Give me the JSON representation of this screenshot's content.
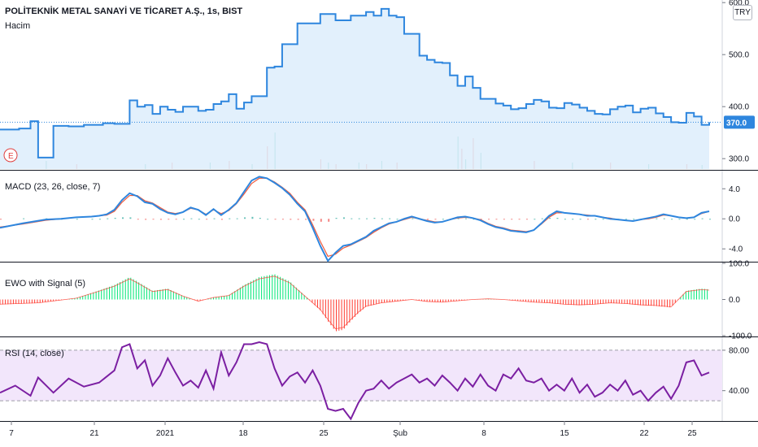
{
  "header": {
    "symbol_title": "POLİTEKNİK METAL SANAYİ VE TİCARET A.Ş., 1s, BIST",
    "volume_label": "Hacim",
    "currency_button": "TRY",
    "event_marker": "E"
  },
  "colors": {
    "price_line": "#2e86de",
    "price_fill": "#d6e9fb",
    "macd_signal": "#f05a3c",
    "hist_up": "#26a69a",
    "hist_down": "#ef5350",
    "ewo_up": "#00e676",
    "ewo_down": "#ff3b30",
    "rsi_line": "#7b1fa2",
    "rsi_band": "#f2e6fb",
    "last_price_badge": "#2e86de"
  },
  "chart_data": [
    {
      "panel": "price",
      "type": "area",
      "title": "POLİTEKNİK METAL SANAYİ VE TİCARET A.Ş., 1s, BIST",
      "ylim": [
        280,
        605
      ],
      "y_ticks": [
        "300.0",
        "400.0",
        "500.0",
        "600.0"
      ],
      "last_value": "370.0",
      "x": [
        0,
        5,
        8,
        10,
        14,
        18,
        22,
        27,
        30,
        33,
        34,
        36,
        38,
        40,
        42,
        44,
        46,
        48,
        50,
        52,
        54,
        56,
        58,
        60,
        62,
        64,
        66,
        68,
        70,
        72,
        74,
        76,
        78,
        80,
        84,
        88,
        92,
        96,
        98,
        100,
        102,
        104,
        106,
        108,
        110,
        112,
        114,
        116,
        118,
        120,
        122,
        124,
        126,
        128,
        130,
        132,
        134,
        136,
        138,
        140,
        142,
        144,
        146,
        148,
        150,
        152,
        154,
        156,
        158,
        160,
        162,
        164,
        166,
        168,
        170,
        172,
        174,
        176,
        178,
        180,
        182,
        184,
        186
      ],
      "values": [
        356,
        358,
        372,
        302,
        363,
        362,
        365,
        368,
        367,
        367,
        412,
        400,
        403,
        386,
        400,
        394,
        390,
        400,
        400,
        392,
        394,
        405,
        410,
        424,
        396,
        408,
        420,
        420,
        475,
        477,
        520,
        520,
        560,
        560,
        578,
        566,
        575,
        582,
        575,
        588,
        575,
        572,
        540,
        540,
        498,
        490,
        485,
        484,
        460,
        440,
        458,
        436,
        415,
        415,
        406,
        402,
        395,
        397,
        405,
        413,
        410,
        398,
        397,
        407,
        404,
        398,
        392,
        386,
        385,
        395,
        400,
        402,
        389,
        396,
        398,
        387,
        380,
        370,
        369,
        388,
        381,
        365,
        370
      ],
      "note_x": "x is in trading days index; bottom axis labels give dates"
    },
    {
      "panel": "volume",
      "type": "bar",
      "title": "Hacim",
      "hidden_values": true
    },
    {
      "panel": "macd",
      "type": "line",
      "title": "MACD (23, 26, close, 7)",
      "ylim": [
        -5.6,
        6.3
      ],
      "y_ticks": [
        "4.0",
        "0.0",
        "-4.0"
      ],
      "x": [
        0,
        6,
        12,
        16,
        20,
        24,
        26,
        28,
        30,
        32,
        34,
        36,
        38,
        40,
        42,
        44,
        46,
        48,
        50,
        52,
        54,
        56,
        58,
        60,
        62,
        64,
        66,
        68,
        70,
        72,
        74,
        76,
        78,
        80,
        82,
        84,
        86,
        88,
        90,
        92,
        94,
        96,
        98,
        100,
        102,
        104,
        106,
        108,
        110,
        112,
        114,
        116,
        118,
        120,
        122,
        124,
        126,
        128,
        130,
        132,
        134,
        136,
        138,
        140,
        142,
        144,
        146,
        148,
        150,
        152,
        154,
        156,
        158,
        160,
        162,
        164,
        166,
        168,
        170,
        172,
        174,
        176,
        178,
        180,
        182,
        184,
        186
      ],
      "series": [
        {
          "name": "MACD",
          "values": [
            -1.2,
            -0.6,
            -0.1,
            0.0,
            0.2,
            0.3,
            0.4,
            0.6,
            1.2,
            2.5,
            3.4,
            3.0,
            2.2,
            2.0,
            1.3,
            0.8,
            0.6,
            0.9,
            1.5,
            1.2,
            0.5,
            1.3,
            0.5,
            1.2,
            2.1,
            3.6,
            5.1,
            5.6,
            5.4,
            4.8,
            4.1,
            3.2,
            2.0,
            1.0,
            -1.2,
            -3.6,
            -5.6,
            -4.5,
            -3.6,
            -3.4,
            -2.9,
            -2.4,
            -1.6,
            -1.1,
            -0.6,
            -0.4,
            0.0,
            0.3,
            0.0,
            -0.3,
            -0.5,
            -0.4,
            -0.1,
            0.2,
            0.3,
            0.1,
            -0.2,
            -0.7,
            -1.1,
            -1.3,
            -1.6,
            -1.7,
            -1.8,
            -1.5,
            -0.6,
            0.4,
            1.0,
            0.8,
            0.7,
            0.6,
            0.4,
            0.4,
            0.2,
            0.0,
            -0.1,
            -0.2,
            -0.3,
            -0.1,
            0.1,
            0.3,
            0.6,
            0.4,
            0.2,
            0.1,
            0.2,
            0.8,
            1.0
          ]
        },
        {
          "name": "Signal",
          "values": [
            -1.1,
            -0.7,
            -0.2,
            0.0,
            0.2,
            0.3,
            0.4,
            0.5,
            1.0,
            2.2,
            3.1,
            3.1,
            2.4,
            2.1,
            1.5,
            0.9,
            0.7,
            0.9,
            1.4,
            1.2,
            0.6,
            1.2,
            0.7,
            1.1,
            2.0,
            3.3,
            4.7,
            5.4,
            5.4,
            4.9,
            4.2,
            3.4,
            2.2,
            1.2,
            -0.8,
            -3.0,
            -5.0,
            -4.7,
            -3.9,
            -3.5,
            -3.0,
            -2.5,
            -1.8,
            -1.2,
            -0.7,
            -0.4,
            -0.1,
            0.2,
            0.0,
            -0.2,
            -0.4,
            -0.4,
            -0.1,
            0.1,
            0.2,
            0.1,
            -0.1,
            -0.6,
            -1.0,
            -1.2,
            -1.5,
            -1.6,
            -1.7,
            -1.5,
            -0.7,
            0.2,
            0.8,
            0.8,
            0.7,
            0.6,
            0.5,
            0.4,
            0.2,
            0.1,
            -0.1,
            -0.2,
            -0.3,
            -0.1,
            0.0,
            0.2,
            0.5,
            0.4,
            0.2,
            0.1,
            0.2,
            0.7,
            1.0
          ]
        }
      ]
    },
    {
      "panel": "ewo",
      "type": "bar",
      "title": "EWO with Signal (5)",
      "ylim": [
        -100,
        100
      ],
      "y_ticks": [
        "100.0",
        "0.0",
        "-100.0"
      ],
      "x": [
        0,
        10,
        20,
        26,
        30,
        34,
        36,
        40,
        44,
        48,
        52,
        56,
        60,
        64,
        68,
        72,
        76,
        80,
        84,
        86,
        88,
        90,
        92,
        94,
        96,
        100,
        104,
        108,
        112,
        116,
        120,
        124,
        128,
        132,
        136,
        140,
        144,
        148,
        152,
        156,
        160,
        164,
        168,
        172,
        176,
        180,
        184,
        186
      ],
      "values": [
        -14,
        -10,
        4,
        25,
        40,
        62,
        50,
        24,
        30,
        10,
        -5,
        6,
        12,
        40,
        62,
        70,
        50,
        10,
        -30,
        -60,
        -88,
        -84,
        -60,
        -38,
        -20,
        -10,
        -5,
        0,
        -6,
        -8,
        -4,
        0,
        2,
        0,
        -4,
        -8,
        -10,
        -14,
        -16,
        -14,
        -10,
        -12,
        -16,
        -18,
        -22,
        24,
        30,
        28
      ]
    },
    {
      "panel": "rsi",
      "type": "line",
      "title": "RSI (14, close)",
      "ylim": [
        10,
        92
      ],
      "y_ticks": [
        "80.00",
        "40.00"
      ],
      "band": [
        30,
        80
      ],
      "x": [
        0,
        4,
        8,
        10,
        14,
        18,
        22,
        26,
        30,
        32,
        34,
        36,
        38,
        40,
        42,
        44,
        46,
        48,
        50,
        52,
        54,
        56,
        58,
        60,
        62,
        64,
        66,
        68,
        70,
        72,
        74,
        76,
        78,
        80,
        82,
        84,
        86,
        88,
        90,
        92,
        94,
        96,
        98,
        100,
        102,
        104,
        106,
        108,
        110,
        112,
        114,
        116,
        118,
        120,
        122,
        124,
        126,
        128,
        130,
        132,
        134,
        136,
        138,
        140,
        142,
        144,
        146,
        148,
        150,
        152,
        154,
        156,
        158,
        160,
        162,
        164,
        166,
        168,
        170,
        172,
        174,
        176,
        178,
        180,
        182,
        184,
        186
      ],
      "values": [
        38,
        45,
        35,
        53,
        38,
        52,
        44,
        48,
        60,
        83,
        86,
        62,
        70,
        45,
        55,
        72,
        58,
        45,
        50,
        43,
        60,
        42,
        78,
        55,
        68,
        86,
        86,
        88,
        86,
        62,
        45,
        54,
        58,
        48,
        60,
        45,
        22,
        20,
        22,
        12,
        28,
        40,
        42,
        50,
        42,
        48,
        52,
        56,
        48,
        52,
        45,
        55,
        48,
        40,
        52,
        44,
        56,
        45,
        40,
        56,
        52,
        62,
        50,
        48,
        52,
        40,
        46,
        40,
        52,
        38,
        46,
        34,
        38,
        46,
        40,
        50,
        36,
        40,
        30,
        38,
        44,
        32,
        45,
        68,
        70,
        55,
        58
      ]
    }
  ],
  "x_axis_labels": [
    "7",
    "21",
    "2021",
    "18",
    "25",
    "Şub",
    "8",
    "15",
    "22",
    "25"
  ]
}
